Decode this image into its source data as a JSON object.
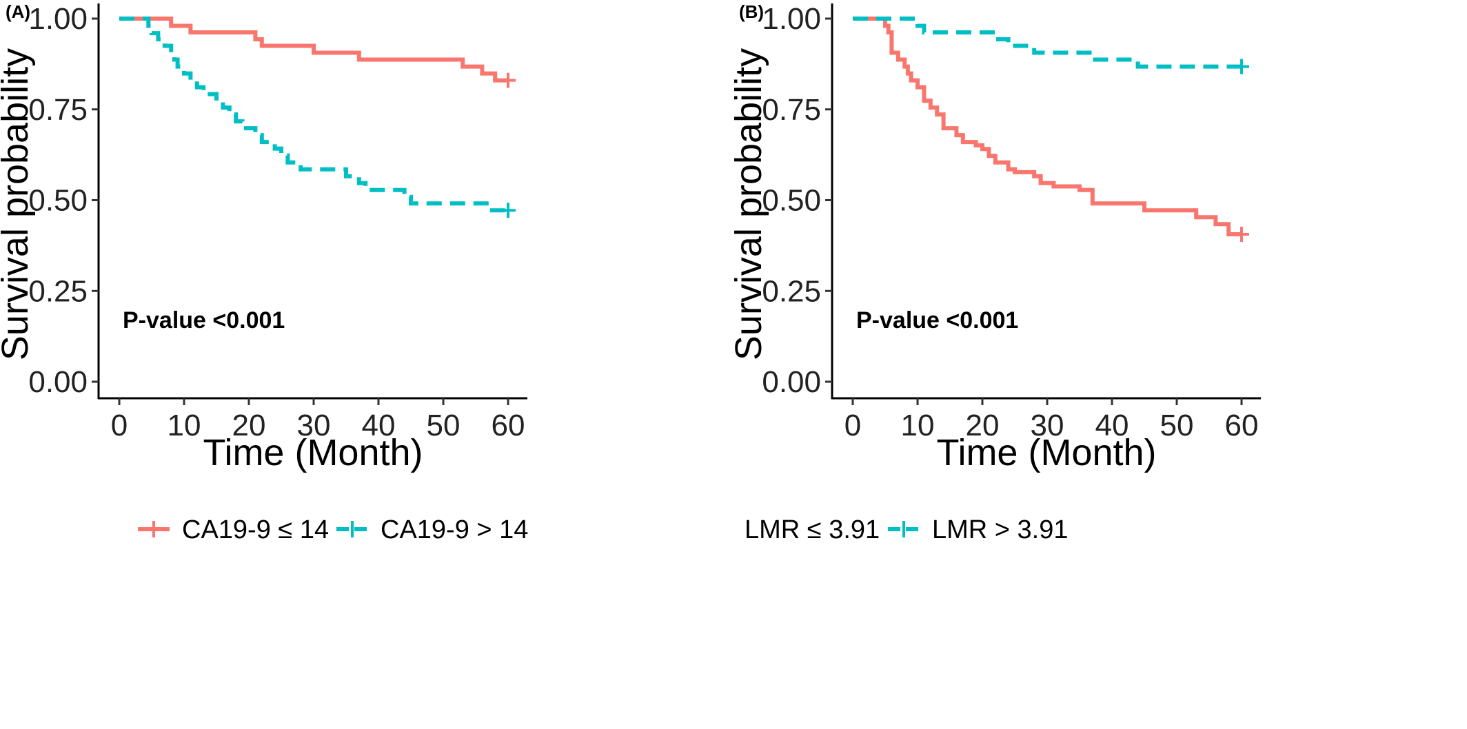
{
  "chart_data": [
    {
      "type": "line",
      "subtype": "kaplan-meier",
      "panel_label": "(A)",
      "xlabel": "Time (Month)",
      "ylabel": "Survival probability",
      "xlim": [
        -2,
        63
      ],
      "ylim": [
        -0.05,
        1.03
      ],
      "xticks": [
        0,
        10,
        20,
        30,
        40,
        50,
        60
      ],
      "yticks": [
        0.0,
        0.25,
        0.5,
        0.75,
        1.0
      ],
      "xtick_labels": [
        "0",
        "10",
        "20",
        "30",
        "40",
        "50",
        "60"
      ],
      "ytick_labels": [
        "0.00",
        "0.25",
        "0.50",
        "0.75",
        "1.00"
      ],
      "annotation": "P-value <0.001",
      "legend_position": "bottom",
      "grid": false,
      "series": [
        {
          "name": "CA19-9 ≤ 14",
          "color": "#F8766D",
          "dash": "solid",
          "times": [
            0,
            8,
            11,
            21,
            22,
            30,
            37,
            53,
            56,
            58,
            60
          ],
          "surv": [
            1.0,
            0.98,
            0.962,
            0.943,
            0.925,
            0.906,
            0.887,
            0.868,
            0.849,
            0.83,
            0.83
          ],
          "censored": [
            [
              60,
              0.83
            ]
          ]
        },
        {
          "name": "CA19-9 > 14",
          "color": "#00BFC4",
          "dash": "dashed",
          "times": [
            0,
            4.5,
            5,
            6,
            7,
            8,
            8.5,
            9,
            10,
            11,
            12,
            13,
            15,
            16,
            17,
            18,
            19,
            21,
            22,
            24,
            25,
            26,
            28,
            29,
            35,
            37,
            38,
            44,
            45,
            57,
            60
          ],
          "surv": [
            1.0,
            0.98,
            0.96,
            0.943,
            0.925,
            0.906,
            0.887,
            0.868,
            0.849,
            0.83,
            0.811,
            0.792,
            0.774,
            0.755,
            0.736,
            0.717,
            0.698,
            0.679,
            0.66,
            0.642,
            0.623,
            0.604,
            0.585,
            0.585,
            0.566,
            0.547,
            0.528,
            0.509,
            0.491,
            0.472,
            0.472
          ],
          "censored": [
            [
              60,
              0.472
            ]
          ]
        }
      ]
    },
    {
      "type": "line",
      "subtype": "kaplan-meier",
      "panel_label": "(B)",
      "xlabel": "Time (Month)",
      "ylabel": "Survival probability",
      "xlim": [
        -2,
        63
      ],
      "ylim": [
        -0.05,
        1.03
      ],
      "xticks": [
        0,
        10,
        20,
        30,
        40,
        50,
        60
      ],
      "yticks": [
        0.0,
        0.25,
        0.5,
        0.75,
        1.0
      ],
      "xtick_labels": [
        "0",
        "10",
        "20",
        "30",
        "40",
        "50",
        "60"
      ],
      "ytick_labels": [
        "0.00",
        "0.25",
        "0.50",
        "0.75",
        "1.00"
      ],
      "annotation": "P-value <0.001",
      "legend_position": "bottom",
      "grid": false,
      "series": [
        {
          "name": "LMR ≤ 3.91",
          "color": "#F8766D",
          "dash": "solid",
          "times": [
            0,
            5,
            5.5,
            6,
            7,
            8,
            8.5,
            9,
            10,
            11,
            12,
            13,
            14,
            16,
            17,
            19,
            20,
            21,
            22,
            24,
            25,
            28,
            29,
            31,
            35,
            37,
            45,
            53,
            56,
            58,
            60
          ],
          "surv": [
            1.0,
            0.98,
            0.962,
            0.906,
            0.887,
            0.868,
            0.849,
            0.83,
            0.811,
            0.774,
            0.755,
            0.736,
            0.698,
            0.679,
            0.66,
            0.651,
            0.641,
            0.622,
            0.604,
            0.585,
            0.577,
            0.566,
            0.547,
            0.538,
            0.528,
            0.491,
            0.472,
            0.453,
            0.434,
            0.406,
            0.406
          ],
          "censored": [
            [
              60,
              0.406
            ]
          ]
        },
        {
          "name": "LMR > 3.91",
          "color": "#00BFC4",
          "dash": "dashed",
          "times": [
            0,
            10,
            11,
            22,
            24,
            28,
            37,
            44,
            60
          ],
          "surv": [
            1.0,
            0.98,
            0.962,
            0.943,
            0.925,
            0.906,
            0.887,
            0.868,
            0.868
          ],
          "censored": [
            [
              60,
              0.868
            ]
          ]
        }
      ]
    }
  ]
}
